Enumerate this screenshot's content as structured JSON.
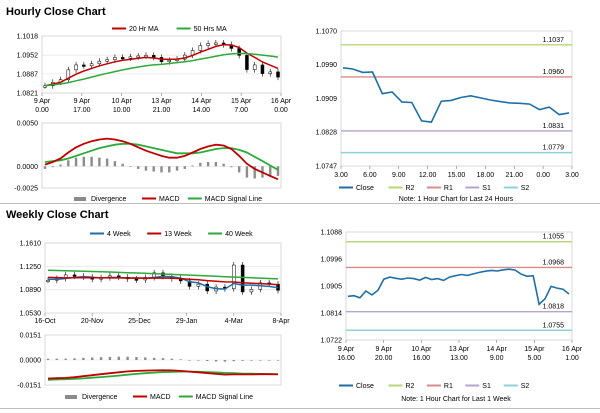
{
  "sections": {
    "hourly_title": "Hourly Close Chart",
    "weekly_title": "Weekly Close Chart"
  },
  "colors": {
    "ma_short": "#c00000",
    "ma_long": "#2eaa3a",
    "close": "#1f6fa8",
    "r2": "#b8d67a",
    "r1": "#d98c8c",
    "s1": "#b4a5cc",
    "s2": "#8fd1d8",
    "macd": "#c00000",
    "signal": "#2eaa3a",
    "divergence": "#8c8c8c",
    "price": "#000000"
  },
  "chart_data": [
    {
      "id": "hourly-price",
      "type": "candlestick",
      "legend": [
        "20 Hr MA",
        "50 Hrs MA"
      ],
      "y_ticks": [
        "1.1018",
        "1.0952",
        "1.0887",
        "1.0821"
      ],
      "ylim": [
        1.0821,
        1.1018
      ],
      "x_ticks": [
        "9 Apr\n0.00",
        "9 Apr\n17.00",
        "10 Apr\n10.00",
        "13 Apr\n21.00",
        "14 Apr\n14.00",
        "15 Apr\n7.00",
        "16 Apr\n0.00"
      ],
      "series": [
        {
          "name": "Close",
          "values": [
            1.0846,
            1.0858,
            1.0867,
            1.0901,
            1.0918,
            1.0915,
            1.0922,
            1.0931,
            1.0936,
            1.0944,
            1.0942,
            1.0946,
            1.0949,
            1.0951,
            1.0944,
            1.0929,
            1.0934,
            1.0938,
            1.0952,
            1.0968,
            1.0985,
            1.0992,
            1.0994,
            1.0988,
            1.0975,
            1.0951,
            1.0902,
            1.0918,
            1.0888,
            1.0894,
            1.0876
          ]
        },
        {
          "name": "20 Hr MA",
          "values": [
            1.0846,
            1.0852,
            1.0858,
            1.0872,
            1.0886,
            1.0897,
            1.0906,
            1.0915,
            1.0922,
            1.0929,
            1.0934,
            1.0937,
            1.0941,
            1.0944,
            1.0942,
            1.0938,
            1.0937,
            1.0938,
            1.0942,
            1.0951,
            1.0962,
            1.0972,
            1.0982,
            1.0988,
            1.0987,
            1.0978,
            1.0959,
            1.0944,
            1.0928,
            1.0917,
            1.0906
          ]
        },
        {
          "name": "50 Hrs MA",
          "values": [
            1.0846,
            1.0849,
            1.0852,
            1.0857,
            1.0863,
            1.0869,
            1.0876,
            1.0883,
            1.0889,
            1.0895,
            1.0901,
            1.0906,
            1.0911,
            1.0915,
            1.0918,
            1.092,
            1.0923,
            1.0926,
            1.0929,
            1.0933,
            1.0938,
            1.0943,
            1.0948,
            1.0953,
            1.0956,
            1.0958,
            1.0957,
            1.0955,
            1.0952,
            1.0949,
            1.0945
          ]
        }
      ]
    },
    {
      "id": "hourly-macd",
      "type": "line+bar",
      "legend": [
        "Divergence",
        "MACD",
        "MACD Signal Line"
      ],
      "y_ticks": [
        "0.0050",
        "0.0000",
        "-0.0025"
      ],
      "ylim": [
        -0.0025,
        0.005
      ],
      "series": [
        {
          "name": "MACD",
          "values": [
            0.0002,
            0.0005,
            0.0009,
            0.0016,
            0.0022,
            0.0026,
            0.0029,
            0.0031,
            0.0032,
            0.0031,
            0.0029,
            0.0026,
            0.0022,
            0.0018,
            0.0015,
            0.0012,
            0.001,
            0.001,
            0.0012,
            0.0016,
            0.002,
            0.0023,
            0.0025,
            0.0024,
            0.002,
            0.0012,
            0.0003,
            -0.0003,
            -0.0007,
            -0.0011,
            -0.0015
          ]
        },
        {
          "name": "MACD Signal Line",
          "values": [
            0.0005,
            0.0006,
            0.0007,
            0.0009,
            0.0012,
            0.0015,
            0.0018,
            0.0021,
            0.0023,
            0.0025,
            0.0026,
            0.0026,
            0.0025,
            0.0023,
            0.0021,
            0.0019,
            0.0017,
            0.0015,
            0.0015,
            0.0015,
            0.0016,
            0.0018,
            0.002,
            0.0021,
            0.0021,
            0.0019,
            0.0016,
            0.0011,
            0.0006,
            0.0001,
            -0.0004
          ]
        },
        {
          "name": "Divergence",
          "values": [
            -0.0003,
            -0.0001,
            0.0002,
            0.0007,
            0.001,
            0.0011,
            0.0011,
            0.001,
            0.0009,
            0.0006,
            0.0003,
            0.0,
            -0.0003,
            -0.0005,
            -0.0006,
            -0.0007,
            -0.0007,
            -0.0005,
            -0.0003,
            0.0001,
            0.0004,
            0.0005,
            0.0005,
            0.0003,
            -0.0001,
            -0.0007,
            -0.0013,
            -0.0014,
            -0.0013,
            -0.0012,
            -0.0011
          ]
        }
      ]
    },
    {
      "id": "hourly-pivot",
      "type": "line",
      "y_ticks": [
        "1.1070",
        "1.0990",
        "1.0909",
        "1.0828",
        "1.0747"
      ],
      "ylim": [
        1.0747,
        1.107
      ],
      "x_ticks": [
        "3.00",
        "6.00",
        "9.00",
        "12.00",
        "15.00",
        "18.00",
        "21.00",
        "0.00",
        "3.00"
      ],
      "levels": [
        {
          "name": "R2",
          "value": 1.1037,
          "label": "1.1037"
        },
        {
          "name": "R1",
          "value": 1.096,
          "label": "1.0960"
        },
        {
          "name": "S1",
          "value": 1.0831,
          "label": "1.0831"
        },
        {
          "name": "S2",
          "value": 1.0779,
          "label": "1.0779"
        }
      ],
      "close": [
        1.0982,
        1.0979,
        1.0971,
        1.0972,
        1.092,
        1.0924,
        1.09,
        1.0899,
        1.0855,
        1.0852,
        1.0902,
        1.0904,
        1.0911,
        1.0915,
        1.091,
        1.0905,
        1.0901,
        1.0898,
        1.0897,
        1.0895,
        1.0882,
        1.0888,
        1.087,
        1.0874
      ],
      "legend": [
        "Close",
        "R2",
        "R1",
        "S1",
        "S2"
      ],
      "note": "Note: 1 Hour Chart for Last 24 Hours"
    },
    {
      "id": "weekly-price",
      "type": "candlestick",
      "legend": [
        "4 Week",
        "13 Week",
        "40 Week"
      ],
      "y_ticks": [
        "1.1610",
        "1.1250",
        "1.0890",
        "1.0530"
      ],
      "ylim": [
        1.053,
        1.161
      ],
      "x_ticks": [
        "16-Oct",
        "20-Nov",
        "25-Dec",
        "29-Jan",
        "4-Mar",
        "8-Apr"
      ],
      "series": [
        {
          "name": "Close",
          "values": [
            1.1035,
            1.1062,
            1.1118,
            1.1098,
            1.1085,
            1.1052,
            1.1075,
            1.1104,
            1.1082,
            1.1056,
            1.104,
            1.1078,
            1.115,
            1.1096,
            1.106,
            1.1025,
            1.094,
            1.0975,
            1.087,
            1.093,
            1.0905,
            1.127,
            1.0855,
            1.0895,
            1.0995,
            1.0975,
            1.088
          ]
        },
        {
          "name": "4 Week",
          "values": [
            1.105,
            1.1048,
            1.1063,
            1.1079,
            1.1091,
            1.1084,
            1.107,
            1.108,
            1.1077,
            1.1069,
            1.1071,
            1.1065,
            1.1079,
            1.1094,
            1.1089,
            1.1069,
            1.1011,
            1.0995,
            1.0937,
            1.0903,
            1.09,
            1.0985,
            1.096,
            1.096,
            1.095,
            1.094,
            1.092
          ]
        },
        {
          "name": "13 Week",
          "values": [
            1.108,
            1.1076,
            1.1072,
            1.1074,
            1.1076,
            1.1075,
            1.1073,
            1.1072,
            1.1071,
            1.107,
            1.1069,
            1.1068,
            1.1069,
            1.107,
            1.1067,
            1.106,
            1.105,
            1.1042,
            1.103,
            1.102,
            1.101,
            1.1008,
            1.0998,
            1.099,
            1.0984,
            1.0978,
            1.0965
          ]
        },
        {
          "name": "40 Week",
          "values": [
            1.119,
            1.1186,
            1.1182,
            1.1178,
            1.1174,
            1.117,
            1.1166,
            1.1162,
            1.1157,
            1.1152,
            1.1147,
            1.1142,
            1.1137,
            1.1132,
            1.1126,
            1.112,
            1.1114,
            1.1108,
            1.1102,
            1.1096,
            1.109,
            1.1085,
            1.108,
            1.1074,
            1.1068,
            1.1062,
            1.1056
          ]
        }
      ]
    },
    {
      "id": "weekly-macd",
      "type": "line+bar",
      "legend": [
        "Divergence",
        "MACD",
        "MACD Signal Line"
      ],
      "y_ticks": [
        "0.0151",
        "0.0000",
        "-0.0151"
      ],
      "ylim": [
        -0.0151,
        0.0151
      ],
      "series": [
        {
          "name": "MACD",
          "values": [
            -0.0112,
            -0.011,
            -0.0108,
            -0.0104,
            -0.0098,
            -0.0092,
            -0.0086,
            -0.008,
            -0.0074,
            -0.0069,
            -0.0066,
            -0.0064,
            -0.0063,
            -0.0062,
            -0.0063,
            -0.0066,
            -0.007,
            -0.0074,
            -0.0079,
            -0.0084,
            -0.0088,
            -0.0087,
            -0.0087,
            -0.0087,
            -0.0086,
            -0.0086,
            -0.0087
          ]
        },
        {
          "name": "MACD Signal Line",
          "values": [
            -0.012,
            -0.0118,
            -0.0116,
            -0.0114,
            -0.0111,
            -0.0107,
            -0.0103,
            -0.0099,
            -0.0094,
            -0.0089,
            -0.0084,
            -0.008,
            -0.0076,
            -0.0073,
            -0.0071,
            -0.007,
            -0.007,
            -0.0071,
            -0.0073,
            -0.0075,
            -0.0078,
            -0.008,
            -0.0082,
            -0.0083,
            -0.0084,
            -0.0085,
            -0.0085
          ]
        },
        {
          "name": "Divergence",
          "values": [
            0.0008,
            0.0008,
            0.0008,
            0.001,
            0.0013,
            0.0015,
            0.0017,
            0.0019,
            0.002,
            0.002,
            0.0018,
            0.0016,
            0.0013,
            0.0011,
            0.0008,
            0.0004,
            0.0,
            -0.0003,
            -0.0006,
            -0.0009,
            -0.001,
            -0.0007,
            -0.0005,
            -0.0004,
            -0.0002,
            -0.0001,
            -0.0002
          ]
        }
      ]
    },
    {
      "id": "weekly-pivot",
      "type": "line",
      "y_ticks": [
        "1.1088",
        "1.0996",
        "1.0905",
        "1.0814",
        "1.0722"
      ],
      "ylim": [
        1.0722,
        1.1088
      ],
      "x_ticks": [
        "9 Apr\n16.00",
        "9 Apr\n20.00",
        "10 Apr\n16.00",
        "13 Apr\n13.00",
        "14 Apr\n9.00",
        "15 Apr\n5.00",
        "16 Apr\n1.00"
      ],
      "levels": [
        {
          "name": "R2",
          "value": 1.1055,
          "label": "1.1055"
        },
        {
          "name": "R1",
          "value": 1.0968,
          "label": "1.0968"
        },
        {
          "name": "S1",
          "value": 1.0818,
          "label": "1.0818"
        },
        {
          "name": "S2",
          "value": 1.0755,
          "label": "1.0755"
        }
      ],
      "close": [
        1.087,
        1.0872,
        1.0865,
        1.0888,
        1.0875,
        1.089,
        1.0928,
        1.0935,
        1.0931,
        1.0928,
        1.0932,
        1.093,
        1.0925,
        1.0934,
        1.0927,
        1.093,
        1.0924,
        1.0935,
        1.094,
        1.0944,
        1.0941,
        1.0946,
        1.0951,
        1.0955,
        1.0958,
        1.0956,
        1.096,
        1.0962,
        1.0959,
        1.0945,
        1.0938,
        1.094,
        1.0843,
        1.0862,
        1.0904,
        1.0898,
        1.0894,
        1.0878
      ],
      "legend": [
        "Close",
        "R2",
        "R1",
        "S1",
        "S2"
      ],
      "note": "Note: 1 Hour Chart for Last 1 Week"
    }
  ]
}
